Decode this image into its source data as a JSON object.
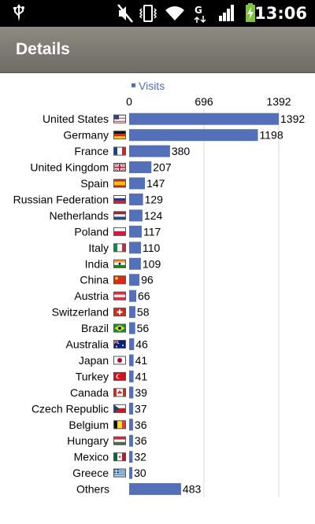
{
  "status_bar": {
    "time": "13:06",
    "icons": [
      "usb-icon",
      "mute-icon",
      "vibrate-icon",
      "wifi-icon",
      "data-g-icon",
      "signal-icon",
      "battery-charging-icon"
    ]
  },
  "action_bar": {
    "title": "Details"
  },
  "chart_data": {
    "type": "bar",
    "orientation": "horizontal",
    "title": "",
    "xlabel": "",
    "ylabel": "",
    "legend": {
      "entries": [
        "Visits"
      ],
      "placement": "top-center"
    },
    "series": [
      {
        "name": "Visits",
        "color": "#5470b8"
      }
    ],
    "xlim": [
      0,
      1392
    ],
    "ticks": [
      "0",
      "696",
      "1392"
    ],
    "tick_values": [
      0,
      696,
      1392
    ],
    "grid": true,
    "categories": [
      "United States",
      "Germany",
      "France",
      "United Kingdom",
      "Spain",
      "Russian Federation",
      "Netherlands",
      "Poland",
      "Italy",
      "India",
      "China",
      "Austria",
      "Switzerland",
      "Brazil",
      "Australia",
      "Japan",
      "Turkey",
      "Canada",
      "Czech Republic",
      "Belgium",
      "Hungary",
      "Mexico",
      "Greece",
      "Others"
    ],
    "flags": [
      "flag-us-icon",
      "flag-de-icon",
      "flag-fr-icon",
      "flag-gb-icon",
      "flag-es-icon",
      "flag-ru-icon",
      "flag-nl-icon",
      "flag-pl-icon",
      "flag-it-icon",
      "flag-in-icon",
      "flag-cn-icon",
      "flag-at-icon",
      "flag-ch-icon",
      "flag-br-icon",
      "flag-au-icon",
      "flag-jp-icon",
      "flag-tr-icon",
      "flag-ca-icon",
      "flag-cz-icon",
      "flag-be-icon",
      "flag-hu-icon",
      "flag-mx-icon",
      "flag-gr-icon",
      ""
    ],
    "values": [
      1392,
      1198,
      380,
      207,
      147,
      129,
      124,
      117,
      110,
      109,
      96,
      66,
      58,
      56,
      46,
      41,
      41,
      39,
      37,
      36,
      36,
      32,
      30,
      483
    ],
    "value_labels": [
      "1392",
      "1198",
      "380",
      "207",
      "147",
      "129",
      "124",
      "117",
      "110",
      "109",
      "96",
      "66",
      "58",
      "56",
      "46",
      "41",
      "41",
      "39",
      "37",
      "36",
      "36",
      "32",
      "30",
      "483"
    ]
  }
}
